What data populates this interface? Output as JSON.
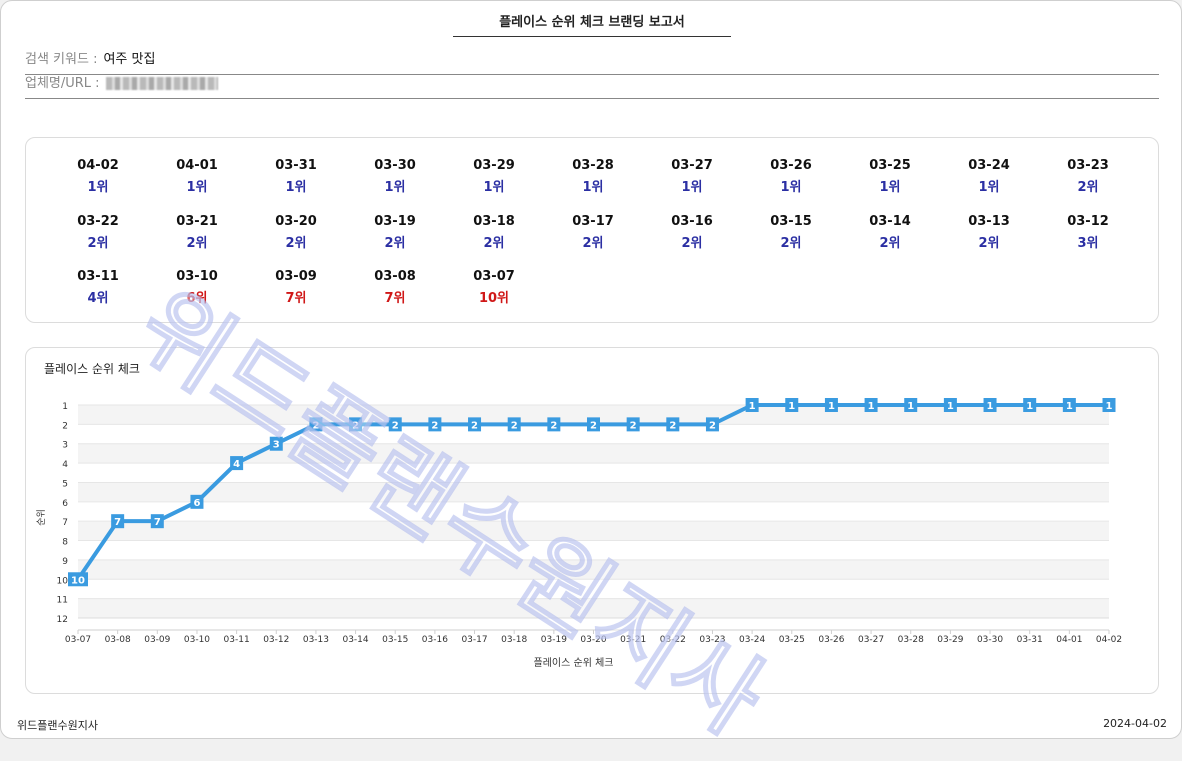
{
  "report": {
    "title": "플레이스 순위 체크 브랜딩 보고서",
    "keyword_label": "검색 키워드 :",
    "keyword_value": "여주 맛집",
    "company_label": "업체명/URL :"
  },
  "rank_list": [
    {
      "date": "04-02",
      "rank": "1위",
      "color": "blue"
    },
    {
      "date": "04-01",
      "rank": "1위",
      "color": "blue"
    },
    {
      "date": "03-31",
      "rank": "1위",
      "color": "blue"
    },
    {
      "date": "03-30",
      "rank": "1위",
      "color": "blue"
    },
    {
      "date": "03-29",
      "rank": "1위",
      "color": "blue"
    },
    {
      "date": "03-28",
      "rank": "1위",
      "color": "blue"
    },
    {
      "date": "03-27",
      "rank": "1위",
      "color": "blue"
    },
    {
      "date": "03-26",
      "rank": "1위",
      "color": "blue"
    },
    {
      "date": "03-25",
      "rank": "1위",
      "color": "blue"
    },
    {
      "date": "03-24",
      "rank": "1위",
      "color": "blue"
    },
    {
      "date": "03-23",
      "rank": "2위",
      "color": "blue"
    },
    {
      "date": "03-22",
      "rank": "2위",
      "color": "blue"
    },
    {
      "date": "03-21",
      "rank": "2위",
      "color": "blue"
    },
    {
      "date": "03-20",
      "rank": "2위",
      "color": "blue"
    },
    {
      "date": "03-19",
      "rank": "2위",
      "color": "blue"
    },
    {
      "date": "03-18",
      "rank": "2위",
      "color": "blue"
    },
    {
      "date": "03-17",
      "rank": "2위",
      "color": "blue"
    },
    {
      "date": "03-16",
      "rank": "2위",
      "color": "blue"
    },
    {
      "date": "03-15",
      "rank": "2위",
      "color": "blue"
    },
    {
      "date": "03-14",
      "rank": "2위",
      "color": "blue"
    },
    {
      "date": "03-13",
      "rank": "2위",
      "color": "blue"
    },
    {
      "date": "03-12",
      "rank": "3위",
      "color": "blue"
    },
    {
      "date": "03-11",
      "rank": "4위",
      "color": "blue"
    },
    {
      "date": "03-10",
      "rank": "6위",
      "color": "red"
    },
    {
      "date": "03-09",
      "rank": "7위",
      "color": "red"
    },
    {
      "date": "03-08",
      "rank": "7위",
      "color": "red"
    },
    {
      "date": "03-07",
      "rank": "10위",
      "color": "red"
    }
  ],
  "chart_data": {
    "type": "line",
    "title": "플레이스 순위 체크",
    "xlabel": "플레이스 순위 체크",
    "ylabel": "순위",
    "y_ticks": [
      1,
      2,
      3,
      4,
      5,
      6,
      7,
      8,
      9,
      10,
      11,
      12
    ],
    "ylim": [
      1,
      12
    ],
    "y_reversed": true,
    "categories": [
      "03-07",
      "03-08",
      "03-09",
      "03-10",
      "03-11",
      "03-12",
      "03-13",
      "03-14",
      "03-15",
      "03-16",
      "03-17",
      "03-18",
      "03-19",
      "03-20",
      "03-21",
      "03-22",
      "03-23",
      "03-24",
      "03-25",
      "03-26",
      "03-27",
      "03-28",
      "03-29",
      "03-30",
      "03-31",
      "04-01",
      "04-02"
    ],
    "series": [
      {
        "name": "순위",
        "values": [
          10,
          7,
          7,
          6,
          4,
          3,
          2,
          2,
          2,
          2,
          2,
          2,
          2,
          2,
          2,
          2,
          2,
          1,
          1,
          1,
          1,
          1,
          1,
          1,
          1,
          1,
          1
        ]
      }
    ],
    "line_color": "#3a9be0",
    "blue_rank_color": "#2b2fa3",
    "red_rank_color": "#d01818"
  },
  "footer": {
    "left": "위드플랜수원지사",
    "right": "2024-04-02"
  },
  "watermark": "위드플랜수원지사"
}
